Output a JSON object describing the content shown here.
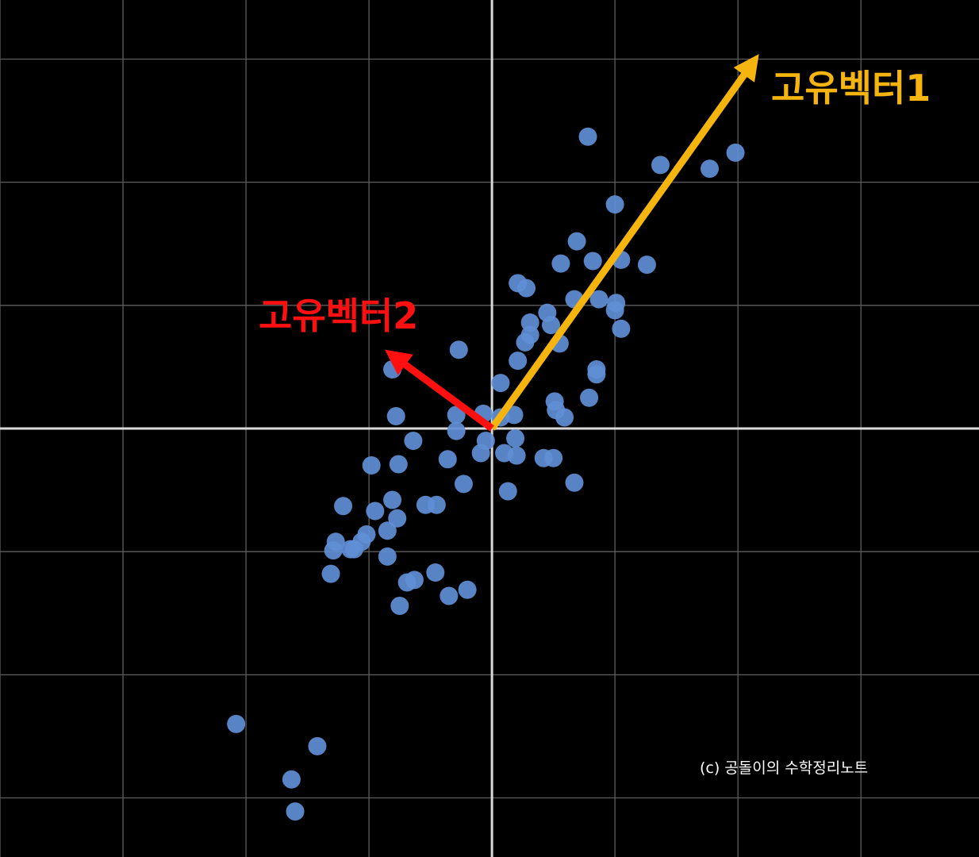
{
  "chart_data": {
    "type": "scatter",
    "x_range": [
      -4,
      3.96
    ],
    "y_range": [
      -3.48,
      3.48
    ],
    "grid_step": 1,
    "grid": true,
    "point_color": "#5f8fd6",
    "points": [
      [
        0.78,
        2.37
      ],
      [
        1.98,
        2.24
      ],
      [
        1.77,
        2.11
      ],
      [
        1.37,
        2.14
      ],
      [
        1.0,
        1.82
      ],
      [
        0.69,
        1.52
      ],
      [
        1.05,
        1.37
      ],
      [
        0.56,
        1.34
      ],
      [
        0.82,
        1.36
      ],
      [
        1.26,
        1.33
      ],
      [
        0.21,
        1.18
      ],
      [
        0.28,
        1.14
      ],
      [
        0.87,
        1.05
      ],
      [
        0.67,
        1.05
      ],
      [
        1.01,
        1.02
      ],
      [
        0.45,
        0.94
      ],
      [
        1.0,
        0.96
      ],
      [
        0.31,
        0.86
      ],
      [
        0.48,
        0.84
      ],
      [
        1.05,
        0.81
      ],
      [
        0.31,
        0.76
      ],
      [
        0.27,
        0.7
      ],
      [
        0.55,
        0.69
      ],
      [
        -0.27,
        0.64
      ],
      [
        0.21,
        0.55
      ],
      [
        0.85,
        0.48
      ],
      [
        -0.81,
        0.48
      ],
      [
        0.85,
        0.44
      ],
      [
        0.79,
        0.25
      ],
      [
        0.07,
        0.37
      ],
      [
        0.52,
        0.15
      ],
      [
        0.51,
        0.22
      ],
      [
        0.59,
        0.09
      ],
      [
        -0.29,
        0.11
      ],
      [
        -0.07,
        0.12
      ],
      [
        0.18,
        0.11
      ],
      [
        -0.78,
        0.1
      ],
      [
        0.07,
        0.09
      ],
      [
        0.19,
        -0.08
      ],
      [
        -0.29,
        -0.02
      ],
      [
        -0.64,
        -0.1
      ],
      [
        -0.05,
        -0.1
      ],
      [
        0.2,
        -0.22
      ],
      [
        -0.09,
        -0.2
      ],
      [
        0.1,
        -0.2
      ],
      [
        -0.36,
        -0.25
      ],
      [
        -0.76,
        -0.29
      ],
      [
        -0.98,
        -0.3
      ],
      [
        0.42,
        -0.24
      ],
      [
        0.5,
        -0.24
      ],
      [
        -0.23,
        -0.45
      ],
      [
        0.67,
        -0.44
      ],
      [
        0.13,
        -0.51
      ],
      [
        -0.54,
        -0.62
      ],
      [
        -0.45,
        -0.62
      ],
      [
        -1.21,
        -0.63
      ],
      [
        -0.81,
        -0.58
      ],
      [
        -0.95,
        -0.67
      ],
      [
        -0.77,
        -0.73
      ],
      [
        -0.85,
        -0.83
      ],
      [
        -1.02,
        -0.86
      ],
      [
        -1.06,
        -0.92
      ],
      [
        -1.27,
        -0.92
      ],
      [
        -1.12,
        -0.98
      ],
      [
        -1.15,
        -0.98
      ],
      [
        -1.29,
        -0.99
      ],
      [
        -0.85,
        -1.04
      ],
      [
        -1.31,
        -1.18
      ],
      [
        -0.46,
        -1.17
      ],
      [
        -0.63,
        -1.23
      ],
      [
        -0.69,
        -1.25
      ],
      [
        -0.2,
        -1.31
      ],
      [
        -0.75,
        -1.44
      ],
      [
        -0.35,
        -1.36
      ],
      [
        -2.08,
        -2.4
      ],
      [
        -1.42,
        -2.58
      ],
      [
        -1.63,
        -2.85
      ],
      [
        -1.6,
        -3.11
      ]
    ],
    "vectors": [
      {
        "name": "고유벡터1",
        "x": 2.17,
        "y": 3.04,
        "color": "#f5b50e"
      },
      {
        "name": "고유벡터2",
        "x": -0.87,
        "y": 0.64,
        "color": "#ff1010"
      }
    ]
  },
  "labels": {
    "eigenvector1": "고유벡터1",
    "eigenvector2": "고유벡터2",
    "credit": "(c) 공돌이의 수학정리노트"
  }
}
